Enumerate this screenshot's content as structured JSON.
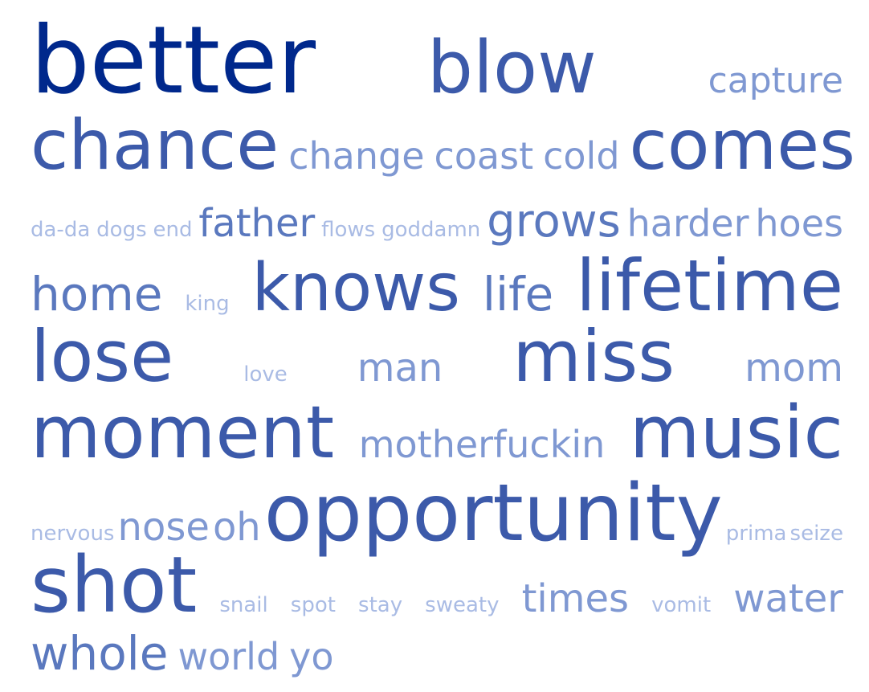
{
  "cloud": {
    "words": [
      {
        "text": "better",
        "weight": 1.0
      },
      {
        "text": "blow",
        "weight": 0.78
      },
      {
        "text": "capture",
        "weight": 0.3
      },
      {
        "text": "chance",
        "weight": 0.72
      },
      {
        "text": "change",
        "weight": 0.3
      },
      {
        "text": "coast",
        "weight": 0.3
      },
      {
        "text": "cold",
        "weight": 0.3
      },
      {
        "text": "comes",
        "weight": 0.72
      },
      {
        "text": "da-da",
        "weight": 0.15
      },
      {
        "text": "dogs",
        "weight": 0.15
      },
      {
        "text": "end",
        "weight": 0.15
      },
      {
        "text": "father",
        "weight": 0.38
      },
      {
        "text": "flows",
        "weight": 0.15
      },
      {
        "text": "goddamn",
        "weight": 0.15
      },
      {
        "text": "grows",
        "weight": 0.4
      },
      {
        "text": "harder",
        "weight": 0.32
      },
      {
        "text": "hoes",
        "weight": 0.32
      },
      {
        "text": "home",
        "weight": 0.38
      },
      {
        "text": "king",
        "weight": 0.15
      },
      {
        "text": "knows",
        "weight": 0.7
      },
      {
        "text": "life",
        "weight": 0.38
      },
      {
        "text": "lifetime",
        "weight": 0.75
      },
      {
        "text": "lose",
        "weight": 0.72
      },
      {
        "text": "love",
        "weight": 0.15
      },
      {
        "text": "man",
        "weight": 0.32
      },
      {
        "text": "miss",
        "weight": 0.75
      },
      {
        "text": "mom",
        "weight": 0.32
      },
      {
        "text": "moment",
        "weight": 0.85
      },
      {
        "text": "motherfuckin",
        "weight": 0.32
      },
      {
        "text": "music",
        "weight": 0.75
      },
      {
        "text": "nervous",
        "weight": 0.15
      },
      {
        "text": "nose",
        "weight": 0.32
      },
      {
        "text": "oh",
        "weight": 0.32
      },
      {
        "text": "opportunity",
        "weight": 0.85
      },
      {
        "text": "prima",
        "weight": 0.15
      },
      {
        "text": "seize",
        "weight": 0.15
      },
      {
        "text": "shot",
        "weight": 0.85
      },
      {
        "text": "snail",
        "weight": 0.15
      },
      {
        "text": "spot",
        "weight": 0.15
      },
      {
        "text": "stay",
        "weight": 0.15
      },
      {
        "text": "sweaty",
        "weight": 0.15
      },
      {
        "text": "times",
        "weight": 0.32
      },
      {
        "text": "vomit",
        "weight": 0.15
      },
      {
        "text": "water",
        "weight": 0.32
      },
      {
        "text": "whole",
        "weight": 0.38
      },
      {
        "text": "world",
        "weight": 0.32
      },
      {
        "text": "yo",
        "weight": 0.32
      }
    ],
    "colors": {
      "darkest": "#00288c",
      "dark": "#3c5aaa",
      "mid": "#5a78be",
      "light": "#7f98d2",
      "lightest": "#a9bbe4"
    }
  }
}
